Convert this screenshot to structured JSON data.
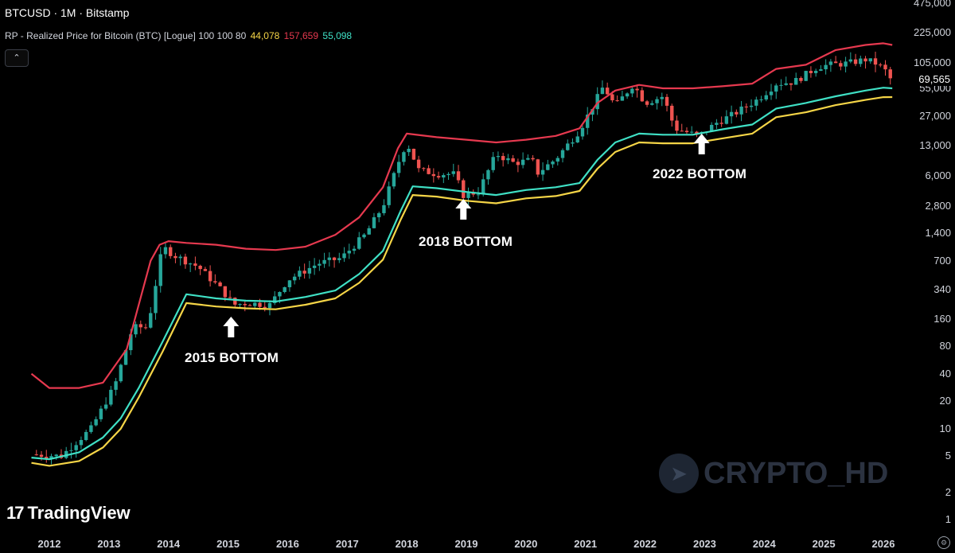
{
  "header": {
    "symbol": "BTCUSD · 1M · Bitstamp",
    "indicator_name": "RP - Realized Price for Bitcoin (BTC) [Logue] 100 100 80",
    "values": [
      {
        "text": "44,078",
        "color": "#f5d547"
      },
      {
        "text": "157,659",
        "color": "#e6394f"
      },
      {
        "text": "55,098",
        "color": "#3fe0c5"
      }
    ],
    "collapse_glyph": "⌃"
  },
  "annotations": [
    {
      "label": "2015 BOTTOM",
      "date": 2015.05
    },
    {
      "label": "2018 BOTTOM",
      "date": 2018.95
    },
    {
      "label": "2022 BOTTOM",
      "date": 2022.95
    }
  ],
  "branding": {
    "tradingview": "TradingView",
    "tradingview_mark": "17",
    "watermark": "CRYPTO_HD",
    "watermark_icon": "telegram-icon"
  },
  "axis": {
    "y_ticks": [
      "1",
      "2",
      "5",
      "10",
      "20",
      "40",
      "80",
      "160",
      "340",
      "700",
      "1,400",
      "2,800",
      "6,000",
      "13,000",
      "27,000",
      "55,000",
      "105,000",
      "225,000",
      "475,000"
    ],
    "y_values": [
      1,
      2,
      5,
      10,
      20,
      40,
      80,
      160,
      340,
      700,
      1400,
      2800,
      6000,
      13000,
      27000,
      55000,
      105000,
      225000,
      475000
    ],
    "x_ticks": [
      "2012",
      "2013",
      "2014",
      "2015",
      "2016",
      "2017",
      "2018",
      "2019",
      "2020",
      "2021",
      "2022",
      "2023",
      "2024",
      "2025",
      "2026"
    ],
    "last_price": "69,565",
    "settings_icon": "gear-icon"
  },
  "chart_data": {
    "type": "line",
    "x_scale": "time (years)",
    "y_scale": "log",
    "ylim": [
      1,
      475000
    ],
    "xlim": [
      2011.55,
      2026.2
    ],
    "colors": {
      "up": "#26a69a",
      "down": "#ef5350",
      "upper_band": "#e6394f",
      "middle_band": "#3fe0c5",
      "lower_band": "#f5d547"
    },
    "series": [
      {
        "color": "#e6394f",
        "x": [
          2011.7,
          2012.0,
          2012.5,
          2012.9,
          2013.3,
          2013.7,
          2013.85,
          2014.0,
          2014.3,
          2014.8,
          2015.3,
          2015.8,
          2016.3,
          2016.8,
          2017.2,
          2017.6,
          2017.85,
          2018.0,
          2018.5,
          2019.0,
          2019.5,
          2020.0,
          2020.5,
          2020.9,
          2021.2,
          2021.5,
          2021.9,
          2022.3,
          2022.8,
          2023.3,
          2023.8,
          2024.2,
          2024.7,
          2025.2,
          2025.7,
          2026.0,
          2026.15
        ],
        "y": [
          40,
          28,
          28,
          32,
          75,
          700,
          1050,
          1150,
          1100,
          1050,
          950,
          920,
          1000,
          1350,
          2100,
          4500,
          12000,
          17500,
          16000,
          15000,
          14000,
          15000,
          16500,
          20000,
          38000,
          52000,
          60000,
          55000,
          55000,
          58000,
          62000,
          90000,
          100000,
          145000,
          165000,
          172000,
          165000
        ]
      },
      {
        "color": "#3fe0c5",
        "x": [
          2011.7,
          2012.0,
          2012.5,
          2012.9,
          2013.2,
          2013.5,
          2013.9,
          2014.3,
          2014.8,
          2015.3,
          2015.8,
          2016.3,
          2016.8,
          2017.2,
          2017.6,
          2017.9,
          2018.1,
          2018.5,
          2019.0,
          2019.5,
          2020.0,
          2020.5,
          2020.9,
          2021.2,
          2021.5,
          2021.9,
          2022.3,
          2022.8,
          2023.3,
          2023.8,
          2024.2,
          2024.7,
          2025.2,
          2025.7,
          2026.0,
          2026.15
        ],
        "y": [
          4.8,
          4.6,
          5.5,
          8,
          13,
          28,
          90,
          300,
          270,
          255,
          250,
          280,
          330,
          500,
          900,
          2500,
          4600,
          4400,
          4000,
          3700,
          4200,
          4500,
          5000,
          9000,
          14000,
          17500,
          17000,
          17000,
          19500,
          22000,
          33000,
          38000,
          45000,
          52000,
          56000,
          55000
        ]
      },
      {
        "color": "#f5d547",
        "x": [
          2011.7,
          2012.0,
          2012.5,
          2012.9,
          2013.2,
          2013.5,
          2013.9,
          2014.3,
          2014.8,
          2015.3,
          2015.8,
          2016.3,
          2016.8,
          2017.2,
          2017.6,
          2017.9,
          2018.1,
          2018.5,
          2019.0,
          2019.5,
          2020.0,
          2020.5,
          2020.9,
          2021.2,
          2021.5,
          2021.9,
          2022.3,
          2022.8,
          2023.3,
          2023.8,
          2024.2,
          2024.7,
          2025.2,
          2025.7,
          2026.0,
          2026.15
        ],
        "y": [
          4.2,
          3.9,
          4.4,
          6.2,
          10,
          22,
          70,
          240,
          220,
          210,
          205,
          230,
          270,
          400,
          720,
          2000,
          3700,
          3550,
          3200,
          3000,
          3400,
          3600,
          4100,
          7200,
          11000,
          14000,
          13700,
          13700,
          15500,
          17500,
          26500,
          30000,
          36000,
          41000,
          44000,
          44078
        ]
      }
    ],
    "candles": {
      "x": [
        2011.7,
        2012.2,
        2012.7,
        2013.1,
        2013.4,
        2013.65,
        2013.9,
        2014.1,
        2014.5,
        2014.9,
        2015.1,
        2015.3,
        2015.7,
        2016.0,
        2016.5,
        2016.9,
        2017.3,
        2017.6,
        2017.9,
        2018.0,
        2018.2,
        2018.5,
        2018.8,
        2018.95,
        2019.2,
        2019.5,
        2019.8,
        2020.1,
        2020.2,
        2020.5,
        2020.9,
        2021.1,
        2021.3,
        2021.5,
        2021.8,
        2022.0,
        2022.3,
        2022.5,
        2022.9,
        2023.2,
        2023.5,
        2023.9,
        2024.2,
        2024.5,
        2024.9,
        2025.1,
        2025.4,
        2025.7,
        2025.9,
        2026.05,
        2026.12
      ],
      "y": [
        5.2,
        5,
        10,
        30,
        130,
        130,
        1000,
        800,
        600,
        330,
        230,
        240,
        230,
        430,
        650,
        750,
        1350,
        2800,
        10000,
        14000,
        7000,
        6300,
        6300,
        3700,
        4000,
        10500,
        8300,
        9000,
        6500,
        9200,
        19000,
        33000,
        58000,
        35000,
        61000,
        38000,
        45000,
        20000,
        16500,
        23000,
        29000,
        42000,
        62000,
        65000,
        95000,
        100000,
        104000,
        114000,
        102000,
        84000,
        69565
      ]
    }
  }
}
